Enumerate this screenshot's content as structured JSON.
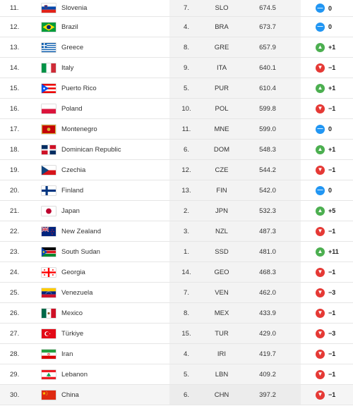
{
  "colors": {
    "up": "#4caf50",
    "down": "#e53935",
    "same": "#2196f3"
  },
  "rows": [
    {
      "rank": "11.",
      "country": "Slovenia",
      "prev": "7.",
      "code": "SLO",
      "points": "674.5",
      "change": "0",
      "trend": "same",
      "flag": "flag-slovenia"
    },
    {
      "rank": "12.",
      "country": "Brazil",
      "prev": "4.",
      "code": "BRA",
      "points": "673.7",
      "change": "0",
      "trend": "same",
      "flag": "flag-brazil"
    },
    {
      "rank": "13.",
      "country": "Greece",
      "prev": "8.",
      "code": "GRE",
      "points": "657.9",
      "change": "+1",
      "trend": "up",
      "flag": "flag-greece"
    },
    {
      "rank": "14.",
      "country": "Italy",
      "prev": "9.",
      "code": "ITA",
      "points": "640.1",
      "change": "−1",
      "trend": "down",
      "flag": "flag-italy"
    },
    {
      "rank": "15.",
      "country": "Puerto Rico",
      "prev": "5.",
      "code": "PUR",
      "points": "610.4",
      "change": "+1",
      "trend": "up",
      "flag": "flag-puerto-rico"
    },
    {
      "rank": "16.",
      "country": "Poland",
      "prev": "10.",
      "code": "POL",
      "points": "599.8",
      "change": "−1",
      "trend": "down",
      "flag": "flag-poland"
    },
    {
      "rank": "17.",
      "country": "Montenegro",
      "prev": "11.",
      "code": "MNE",
      "points": "599.0",
      "change": "0",
      "trend": "same",
      "flag": "flag-montenegro"
    },
    {
      "rank": "18.",
      "country": "Dominican Republic",
      "prev": "6.",
      "code": "DOM",
      "points": "548.3",
      "change": "+1",
      "trend": "up",
      "flag": "flag-dominican-republic"
    },
    {
      "rank": "19.",
      "country": "Czechia",
      "prev": "12.",
      "code": "CZE",
      "points": "544.2",
      "change": "−1",
      "trend": "down",
      "flag": "flag-czechia"
    },
    {
      "rank": "20.",
      "country": "Finland",
      "prev": "13.",
      "code": "FIN",
      "points": "542.0",
      "change": "0",
      "trend": "same",
      "flag": "flag-finland"
    },
    {
      "rank": "21.",
      "country": "Japan",
      "prev": "2.",
      "code": "JPN",
      "points": "532.3",
      "change": "+5",
      "trend": "up",
      "flag": "flag-japan"
    },
    {
      "rank": "22.",
      "country": "New Zealand",
      "prev": "3.",
      "code": "NZL",
      "points": "487.3",
      "change": "−1",
      "trend": "down",
      "flag": "flag-new-zealand"
    },
    {
      "rank": "23.",
      "country": "South Sudan",
      "prev": "1.",
      "code": "SSD",
      "points": "481.0",
      "change": "+11",
      "trend": "up",
      "flag": "flag-south-sudan"
    },
    {
      "rank": "24.",
      "country": "Georgia",
      "prev": "14.",
      "code": "GEO",
      "points": "468.3",
      "change": "−1",
      "trend": "down",
      "flag": "flag-georgia"
    },
    {
      "rank": "25.",
      "country": "Venezuela",
      "prev": "7.",
      "code": "VEN",
      "points": "462.0",
      "change": "−3",
      "trend": "down",
      "flag": "flag-venezuela"
    },
    {
      "rank": "26.",
      "country": "Mexico",
      "prev": "8.",
      "code": "MEX",
      "points": "433.9",
      "change": "−1",
      "trend": "down",
      "flag": "flag-mexico"
    },
    {
      "rank": "27.",
      "country": "Türkiye",
      "prev": "15.",
      "code": "TUR",
      "points": "429.0",
      "change": "−3",
      "trend": "down",
      "flag": "flag-turkiye"
    },
    {
      "rank": "28.",
      "country": "Iran",
      "prev": "4.",
      "code": "IRI",
      "points": "419.7",
      "change": "−1",
      "trend": "down",
      "flag": "flag-iran"
    },
    {
      "rank": "29.",
      "country": "Lebanon",
      "prev": "5.",
      "code": "LBN",
      "points": "409.2",
      "change": "−1",
      "trend": "down",
      "flag": "flag-lebanon"
    },
    {
      "rank": "30.",
      "country": "China",
      "prev": "6.",
      "code": "CHN",
      "points": "397.2",
      "change": "−1",
      "trend": "down",
      "flag": "flag-china"
    }
  ]
}
